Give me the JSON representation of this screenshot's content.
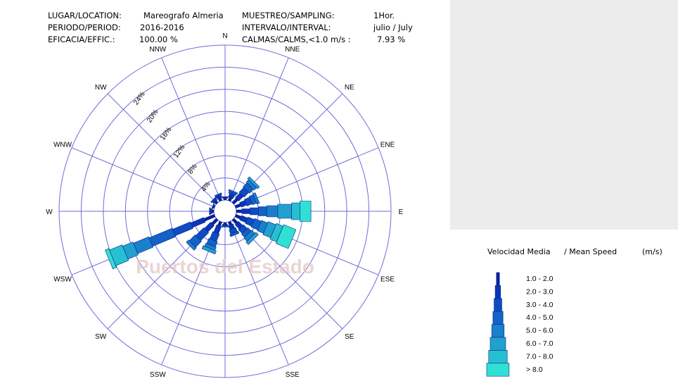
{
  "header": {
    "location_label": "LUGAR/LOCATION:",
    "location_value": "Mareografo Almeria",
    "period_label": "PERIODO/PERIOD:",
    "period_value": "2016-2016",
    "efficacy_label": "EFICACIA/EFFIC.:",
    "efficacy_value": "100.00 %",
    "sampling_label": "MUESTREO/SAMPLING:",
    "sampling_value": "1Hor.",
    "interval_label": "INTERVALO/INTERVAL:",
    "interval_value": "julio / July",
    "calms_label": "CALMAS/CALMS,<1.0 m/s :",
    "calms_value": "7.93 %"
  },
  "watermark": "Puertos del Estado",
  "legend": {
    "title_es": "Velocidad Media",
    "title_en": "/ Mean Speed",
    "units": "(m/s)"
  },
  "chart_data": {
    "type": "wind-rose",
    "directions": [
      "N",
      "NNE",
      "NE",
      "ENE",
      "E",
      "ESE",
      "SE",
      "SSE",
      "S",
      "SSW",
      "SW",
      "WSW",
      "W",
      "WNW",
      "NW",
      "NNW"
    ],
    "ring_labels": [
      "4%",
      "8%",
      "12%",
      "16%",
      "20%",
      "24%"
    ],
    "ring_values": [
      4,
      8,
      12,
      16,
      20,
      24
    ],
    "rmax": 28,
    "calm_pct": 7.93,
    "speed_classes": [
      "1.0 - 2.0",
      "2.0 - 3.0",
      "3.0 - 4.0",
      "4.0 - 5.0",
      "5.0 - 6.0",
      "6.0 - 7.0",
      "7.0 - 8.0",
      "> 8.0"
    ],
    "class_colors": [
      "#0b1f9e",
      "#0a35b8",
      "#0d4cc4",
      "#1262c8",
      "#1a7fcc",
      "#22a0cf",
      "#27bfd2",
      "#31e0d4"
    ],
    "frequencies": [
      {
        "dir": "N",
        "values": [
          0.3,
          0.2,
          0.1,
          0,
          0,
          0,
          0,
          0
        ]
      },
      {
        "dir": "NNE",
        "values": [
          0.6,
          0.6,
          0.4,
          0.3,
          0,
          0,
          0,
          0
        ]
      },
      {
        "dir": "NE",
        "values": [
          1.0,
          1.2,
          1.2,
          1.0,
          0.6,
          0.5,
          0,
          0
        ]
      },
      {
        "dir": "ENE",
        "values": [
          1.0,
          1.0,
          1.0,
          0.8,
          0.5,
          0,
          0,
          0
        ]
      },
      {
        "dir": "E",
        "values": [
          1.0,
          1.5,
          1.5,
          1.5,
          2.0,
          2.5,
          1.5,
          2.0
        ]
      },
      {
        "dir": "ESE",
        "values": [
          1.0,
          1.2,
          1.2,
          1.3,
          1.2,
          1.5,
          1.3,
          2.4
        ]
      },
      {
        "dir": "SE",
        "values": [
          1.0,
          1.0,
          1.0,
          0.8,
          0.8,
          0.6,
          0,
          0
        ]
      },
      {
        "dir": "SSE",
        "values": [
          0.6,
          0.8,
          0.8,
          0.4,
          0,
          0,
          0,
          0
        ]
      },
      {
        "dir": "S",
        "values": [
          0.3,
          0.3,
          0.2,
          0,
          0,
          0,
          0,
          0
        ]
      },
      {
        "dir": "SSW",
        "values": [
          0.8,
          1.4,
          1.4,
          1.0,
          0.6,
          0.6,
          0,
          0
        ]
      },
      {
        "dir": "SW",
        "values": [
          1.2,
          1.6,
          2.0,
          1.5,
          0.6,
          0,
          0,
          0
        ]
      },
      {
        "dir": "WSW",
        "values": [
          2.0,
          2.5,
          3.5,
          4.5,
          3.0,
          2.0,
          2.5,
          0.7
        ]
      },
      {
        "dir": "W",
        "values": [
          0.3,
          0.3,
          0.2,
          0,
          0,
          0,
          0,
          0
        ]
      },
      {
        "dir": "WNW",
        "values": [
          0.2,
          0.2,
          0,
          0,
          0,
          0,
          0,
          0
        ]
      },
      {
        "dir": "NW",
        "values": [
          0.4,
          0.4,
          0.2,
          0,
          0,
          0,
          0,
          0
        ]
      },
      {
        "dir": "NNW",
        "values": [
          0.5,
          0.5,
          0.3,
          0,
          0,
          0,
          0,
          0
        ]
      }
    ]
  }
}
